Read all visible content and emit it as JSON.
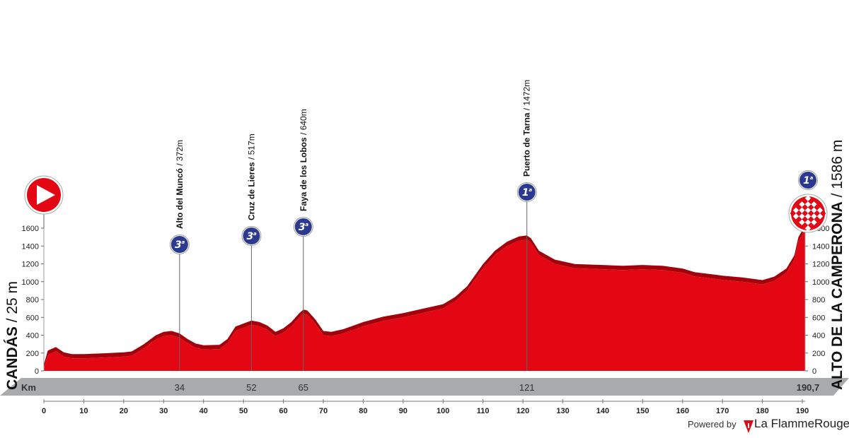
{
  "start": {
    "name": "CANDÁS",
    "altitude": "25 m"
  },
  "finish": {
    "name": "ALTO DE LA CAMPERONA",
    "altitude": "1586 m"
  },
  "km_label": "Km",
  "footer": {
    "powered_by": "Powered by",
    "brand": "La FlammeRouge"
  },
  "colors": {
    "profile": "#e30613",
    "profile_shadow": "#a3000c",
    "badge": "#2b3990",
    "band": "#a9aaac"
  },
  "chart_data": {
    "type": "area",
    "title": "",
    "xlabel": "Km",
    "ylabel": "",
    "xlim": [
      0,
      190.7
    ],
    "ylim": [
      0,
      1600
    ],
    "x_ticks": [
      0,
      10,
      20,
      30,
      40,
      50,
      60,
      70,
      80,
      90,
      100,
      110,
      120,
      130,
      140,
      150,
      160,
      170,
      180,
      190
    ],
    "y_ticks": [
      0,
      200,
      400,
      600,
      800,
      1000,
      1200,
      1400,
      1600
    ],
    "profile": {
      "x": [
        0,
        1,
        3,
        5,
        7,
        10,
        15,
        20,
        22,
        25,
        28,
        30,
        32,
        34,
        36,
        38,
        40,
        44,
        46,
        48,
        52,
        54,
        56,
        58,
        60,
        62,
        64,
        65,
        66,
        68,
        70,
        72,
        75,
        80,
        85,
        90,
        95,
        100,
        103,
        106,
        110,
        113,
        116,
        119,
        121,
        122,
        124,
        128,
        133,
        140,
        145,
        150,
        155,
        160,
        163,
        170,
        175,
        180,
        183,
        186,
        188,
        189,
        190.7
      ],
      "y": [
        25,
        180,
        220,
        160,
        140,
        140,
        150,
        160,
        170,
        250,
        350,
        390,
        400,
        372,
        310,
        260,
        240,
        245,
        310,
        450,
        517,
        500,
        460,
        390,
        430,
        500,
        600,
        640,
        630,
        530,
        400,
        390,
        420,
        500,
        560,
        600,
        650,
        700,
        780,
        900,
        1150,
        1300,
        1400,
        1460,
        1472,
        1440,
        1300,
        1200,
        1150,
        1140,
        1130,
        1140,
        1130,
        1100,
        1060,
        1020,
        1000,
        970,
        1010,
        1100,
        1250,
        1450,
        1586
      ]
    },
    "climbs": [
      {
        "name": "Alto del Muncó",
        "altitude": "372m",
        "km": 34,
        "km_label": "34",
        "category": "3"
      },
      {
        "name": "Cruz de Lieres",
        "altitude": "517m",
        "km": 52,
        "km_label": "52",
        "category": "3"
      },
      {
        "name": "Faya de los Lobos",
        "altitude": "640m",
        "km": 65,
        "km_label": "65",
        "category": "3"
      },
      {
        "name": "Puerto de Tarna",
        "altitude": "1472m",
        "km": 121,
        "km_label": "121",
        "category": "1"
      }
    ],
    "finish_km_label": "190,7",
    "finish_category": "1"
  }
}
